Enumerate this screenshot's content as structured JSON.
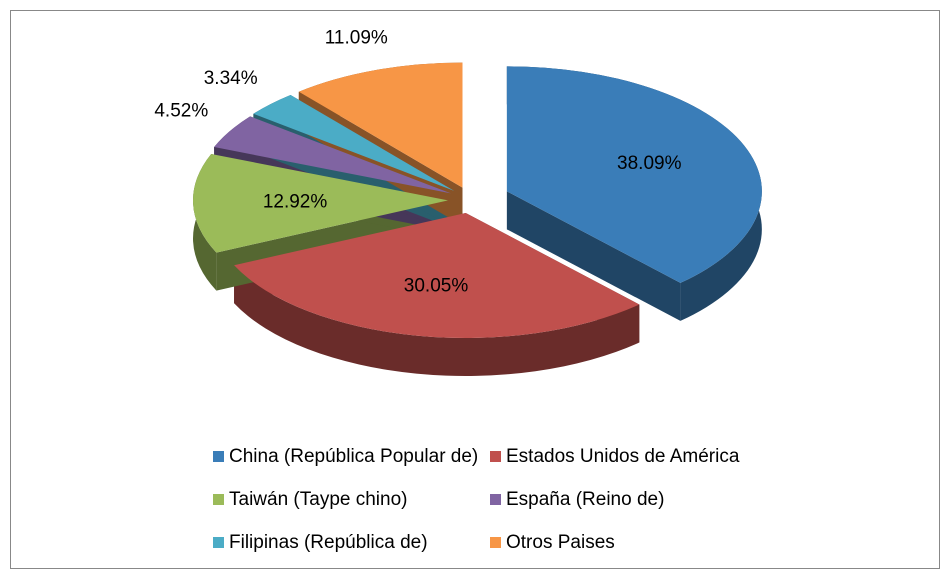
{
  "chart_data": {
    "type": "pie",
    "categories": [
      "China (República Popular de)",
      "Estados Unidos de América",
      "Taiwán (Taype chino)",
      "España (Reino de)",
      "Filipinas (República de)",
      "Otros Paises"
    ],
    "values": [
      38.09,
      30.05,
      12.92,
      4.52,
      3.34,
      11.09
    ],
    "value_labels": [
      "38.09%",
      "30.05%",
      "12.92%",
      "4.52%",
      "3.34%",
      "11.09%"
    ],
    "colors": [
      "#3a7db8",
      "#c0504d",
      "#9bbb59",
      "#8064a2",
      "#4bacc6",
      "#f79646"
    ],
    "legend": "bottom"
  }
}
